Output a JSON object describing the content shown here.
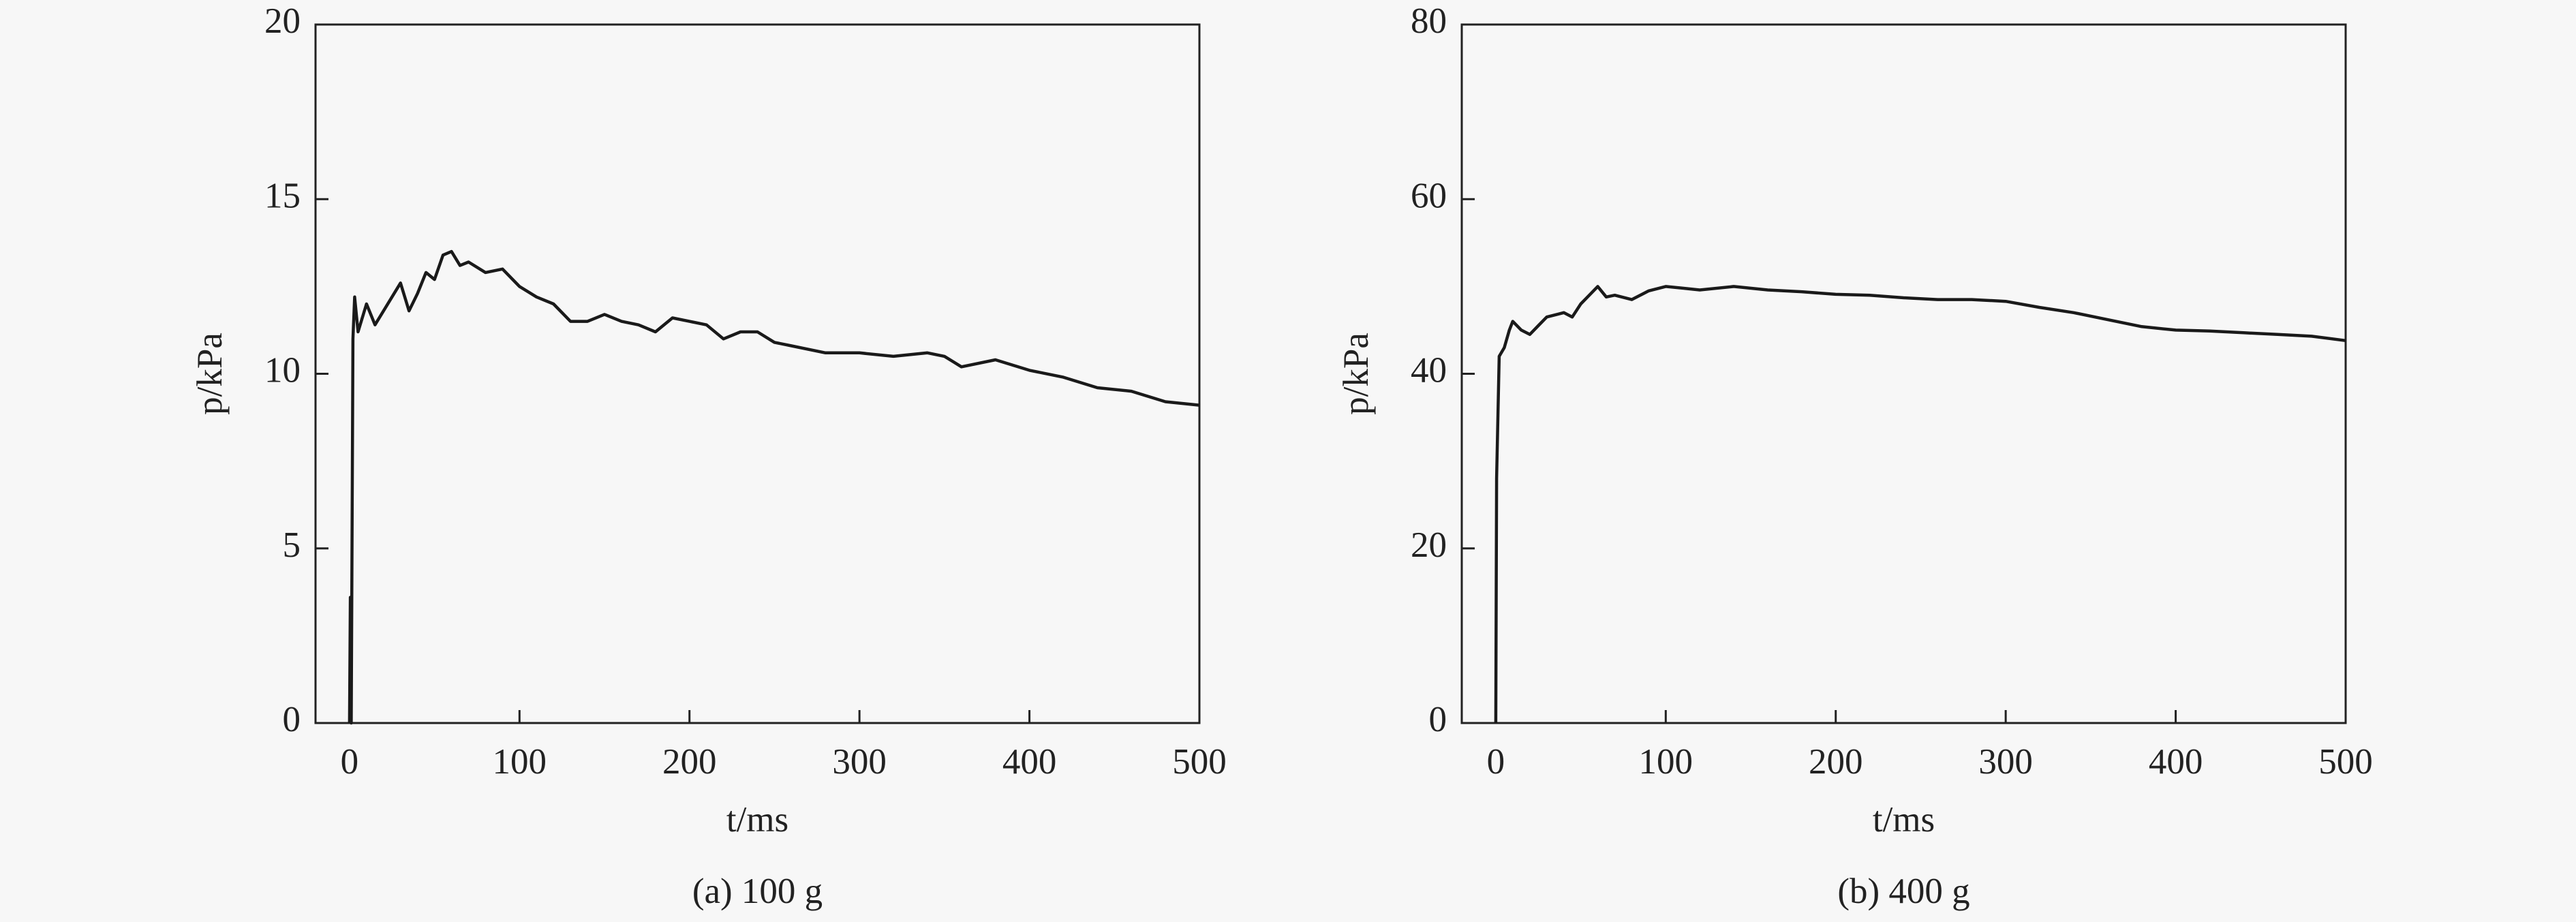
{
  "chart_data": [
    {
      "type": "line",
      "caption": "(a) 100 g",
      "x_label": "t/ms",
      "y_label": "p/kPa",
      "xlim": [
        -20,
        500
      ],
      "xticks": [
        0,
        100,
        200,
        300,
        400,
        500
      ],
      "ylim": [
        0,
        20
      ],
      "yticks": [
        0,
        5,
        10,
        15,
        20
      ],
      "series": [
        {
          "color": "#1a1a1a",
          "x": [
            0,
            0.5,
            1,
            2,
            3,
            5,
            10,
            15,
            20,
            25,
            30,
            35,
            40,
            45,
            50,
            55,
            60,
            65,
            70,
            80,
            90,
            100,
            110,
            120,
            130,
            140,
            150,
            160,
            170,
            180,
            190,
            200,
            210,
            220,
            230,
            240,
            250,
            260,
            280,
            300,
            320,
            340,
            350,
            360,
            380,
            400,
            420,
            440,
            460,
            480,
            500
          ],
          "values": [
            0,
            3.6,
            0,
            11,
            12.2,
            11.2,
            12,
            11.4,
            11.8,
            12.2,
            12.6,
            11.8,
            12.3,
            12.9,
            12.7,
            13.4,
            13.5,
            13.1,
            13.2,
            12.9,
            13.0,
            12.5,
            12.2,
            12.0,
            11.5,
            11.5,
            11.7,
            11.5,
            11.4,
            11.2,
            11.6,
            11.5,
            11.4,
            11.0,
            11.2,
            11.2,
            10.9,
            10.8,
            10.6,
            10.6,
            10.5,
            10.6,
            10.5,
            10.2,
            10.4,
            10.1,
            9.9,
            9.6,
            9.5,
            9.2,
            9.1
          ]
        }
      ]
    },
    {
      "type": "line",
      "caption": "(b) 400 g",
      "x_label": "t/ms",
      "y_label": "p/kPa",
      "xlim": [
        -20,
        500
      ],
      "xticks": [
        0,
        100,
        200,
        300,
        400,
        500
      ],
      "ylim": [
        0,
        80
      ],
      "yticks": [
        0,
        20,
        40,
        60,
        80
      ],
      "series": [
        {
          "color": "#1a1a1a",
          "x": [
            0,
            0.5,
            2,
            5,
            8,
            10,
            15,
            20,
            25,
            30,
            40,
            45,
            50,
            55,
            60,
            65,
            70,
            80,
            90,
            100,
            110,
            120,
            140,
            160,
            180,
            200,
            220,
            240,
            260,
            280,
            300,
            320,
            340,
            360,
            380,
            400,
            420,
            440,
            460,
            480,
            500
          ],
          "values": [
            0,
            28,
            42,
            43,
            45,
            46,
            45,
            44.5,
            45.5,
            46.5,
            47,
            46.5,
            48,
            49,
            50,
            48.8,
            49,
            48.5,
            49.5,
            50,
            49.8,
            49.6,
            50,
            49.6,
            49.4,
            49.1,
            49,
            48.7,
            48.5,
            48.5,
            48.3,
            47.6,
            47,
            46.2,
            45.4,
            45,
            44.9,
            44.7,
            44.5,
            44.3,
            43.8
          ]
        }
      ]
    }
  ]
}
